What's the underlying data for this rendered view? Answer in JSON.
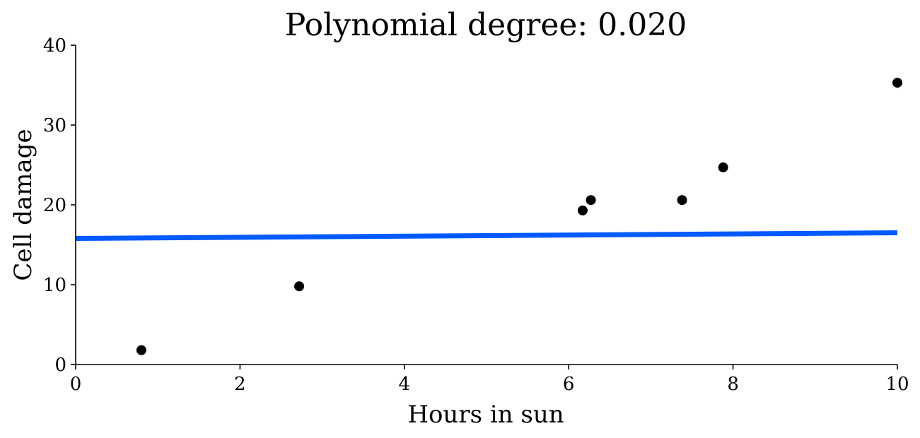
{
  "chart_data": {
    "type": "scatter",
    "title": "Polynomial degree: 0.020",
    "xlabel": "Hours in sun",
    "ylabel": "Cell damage",
    "xlim": [
      0,
      10
    ],
    "ylim": [
      0,
      40
    ],
    "xticks": [
      0,
      2,
      4,
      6,
      8,
      10
    ],
    "yticks": [
      0,
      10,
      20,
      30,
      40
    ],
    "grid": false,
    "series": [
      {
        "kind": "scatter",
        "color": "#000000",
        "points": [
          {
            "x": 0.8,
            "y": 1.8
          },
          {
            "x": 2.72,
            "y": 9.8
          },
          {
            "x": 6.17,
            "y": 19.3
          },
          {
            "x": 6.27,
            "y": 20.6
          },
          {
            "x": 7.38,
            "y": 20.6
          },
          {
            "x": 7.88,
            "y": 24.7
          },
          {
            "x": 10.0,
            "y": 35.3
          }
        ]
      },
      {
        "kind": "line",
        "color": "#005aff",
        "points": [
          {
            "x": 0,
            "y": 15.8
          },
          {
            "x": 10,
            "y": 16.5
          }
        ]
      }
    ]
  }
}
